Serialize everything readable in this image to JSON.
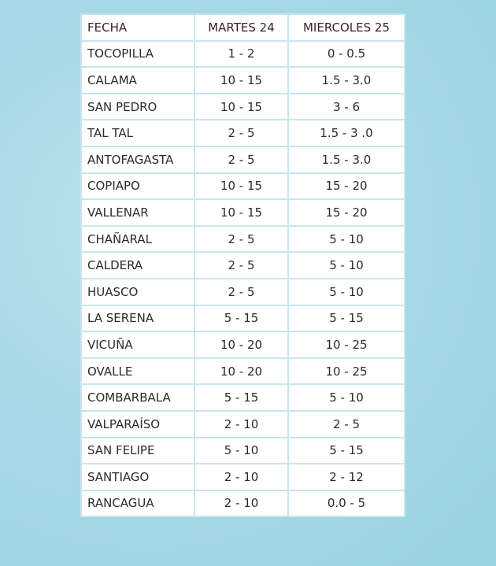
{
  "table": {
    "headers": [
      "FECHA",
      "MARTES 24",
      "MIERCOLES 25"
    ],
    "rows": [
      [
        "TOCOPILLA",
        "1 - 2",
        "0 - 0.5"
      ],
      [
        "CALAMA",
        "10 - 15",
        "1.5 - 3.0"
      ],
      [
        "SAN PEDRO",
        "10 - 15",
        "3 - 6"
      ],
      [
        "TAL TAL",
        "2 - 5",
        "1.5 - 3 .0"
      ],
      [
        "ANTOFAGASTA",
        "2 - 5",
        "1.5 - 3.0"
      ],
      [
        "COPIAPO",
        "10 - 15",
        "15 - 20"
      ],
      [
        "VALLENAR",
        "10 - 15",
        "15 - 20"
      ],
      [
        "CHAÑARAL",
        "2 - 5",
        "5 - 10"
      ],
      [
        "CALDERA",
        "2 - 5",
        "5 - 10"
      ],
      [
        "HUASCO",
        "2 - 5",
        "5 - 10"
      ],
      [
        "LA SERENA",
        "5 - 15",
        "5 - 15"
      ],
      [
        "VICUÑA",
        "10 - 20",
        "10 - 25"
      ],
      [
        "OVALLE",
        "10 - 20",
        "10 - 25"
      ],
      [
        "COMBARBALA",
        "5 - 15",
        "5 - 10"
      ],
      [
        "VALPARAÍSO",
        "2 - 10",
        "2 - 5"
      ],
      [
        "SAN FELIPE",
        "5 - 10",
        "5 - 15"
      ],
      [
        "SANTIAGO",
        "2 - 10",
        "2 - 12"
      ],
      [
        "RANCAGUA",
        "2 - 10",
        "0.0 - 5"
      ]
    ]
  },
  "colors": {
    "background": "#a6d9e5",
    "border": "#c7e6ef"
  }
}
